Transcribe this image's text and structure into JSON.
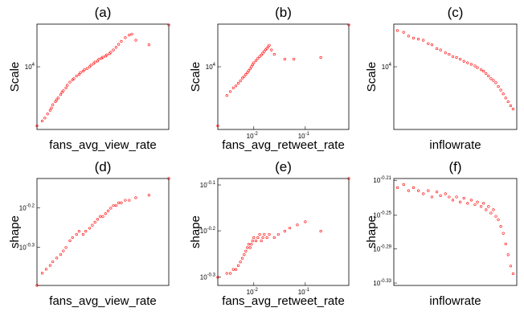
{
  "chart_data": [
    {
      "type": "scatter",
      "title": "(a)",
      "xlabel": "fans_avg_view_rate",
      "ylabel": "Scale",
      "xscale": "linear",
      "yscale": "log",
      "xlim": [
        0,
        1
      ],
      "ylim": [
        2200,
        28000
      ],
      "color": "#ff0000",
      "marker": "circle",
      "xticks": [],
      "yticks": [
        {
          "value": 10000,
          "label_base": "10",
          "label_exp": "4"
        }
      ],
      "x": [
        0.0,
        0.04,
        0.06,
        0.08,
        0.1,
        0.11,
        0.12,
        0.14,
        0.15,
        0.16,
        0.18,
        0.19,
        0.2,
        0.22,
        0.23,
        0.25,
        0.27,
        0.28,
        0.3,
        0.32,
        0.33,
        0.35,
        0.36,
        0.38,
        0.4,
        0.41,
        0.43,
        0.44,
        0.46,
        0.47,
        0.49,
        0.5,
        0.52,
        0.53,
        0.55,
        0.56,
        0.58,
        0.6,
        0.62,
        0.64,
        0.67,
        0.7,
        0.72,
        0.75,
        0.85,
        1.0
      ],
      "y": [
        2400,
        2700,
        2900,
        3200,
        3500,
        3700,
        4000,
        4300,
        4500,
        4700,
        5100,
        5400,
        5600,
        6000,
        6400,
        6900,
        7300,
        7500,
        8000,
        8300,
        8700,
        9000,
        9300,
        9600,
        10000,
        10400,
        10800,
        11200,
        11500,
        12000,
        12300,
        12600,
        12900,
        13300,
        13700,
        14200,
        15000,
        16000,
        17200,
        18500,
        20200,
        21500,
        22000,
        19000,
        17000,
        27500
      ]
    },
    {
      "type": "scatter",
      "title": "(b)",
      "xlabel": "fans_avg_retweet_rate",
      "ylabel": "Scale",
      "xscale": "log",
      "yscale": "log",
      "xlim": [
        0.002,
        0.7
      ],
      "ylim": [
        2200,
        28000
      ],
      "color": "#ff0000",
      "marker": "circle",
      "xticks": [
        {
          "value": 0.01,
          "label_base": "10",
          "label_exp": "-2"
        },
        {
          "value": 0.1,
          "label_base": "10",
          "label_exp": "-1"
        }
      ],
      "yticks": [
        {
          "value": 10000,
          "label_base": "10",
          "label_exp": "4"
        }
      ],
      "x": [
        0.002,
        0.003,
        0.0035,
        0.004,
        0.0045,
        0.005,
        0.0055,
        0.006,
        0.0065,
        0.007,
        0.0075,
        0.008,
        0.0085,
        0.009,
        0.0095,
        0.01,
        0.011,
        0.012,
        0.013,
        0.014,
        0.015,
        0.016,
        0.017,
        0.018,
        0.019,
        0.02,
        0.022,
        0.025,
        0.04,
        0.06,
        0.2,
        0.7
      ],
      "y": [
        2400,
        5000,
        5500,
        6000,
        6300,
        6700,
        7100,
        7600,
        7900,
        8300,
        8700,
        9100,
        9500,
        10000,
        10500,
        11000,
        11600,
        12200,
        12800,
        13300,
        13900,
        14500,
        15100,
        15600,
        16200,
        16800,
        15000,
        13500,
        12000,
        12000,
        12500,
        27500
      ]
    },
    {
      "type": "scatter",
      "title": "(c)",
      "xlabel": "inflowrate",
      "ylabel": "Scale",
      "xscale": "linear",
      "yscale": "log",
      "xlim": [
        0,
        1
      ],
      "ylim": [
        2200,
        28000
      ],
      "color": "#ff0000",
      "marker": "circle",
      "xticks": [],
      "yticks": [
        {
          "value": 10000,
          "label_base": "10",
          "label_exp": "4"
        }
      ],
      "x": [
        0.03,
        0.08,
        0.12,
        0.16,
        0.2,
        0.24,
        0.28,
        0.31,
        0.35,
        0.38,
        0.42,
        0.45,
        0.48,
        0.51,
        0.54,
        0.57,
        0.6,
        0.63,
        0.66,
        0.68,
        0.71,
        0.73,
        0.75,
        0.77,
        0.79,
        0.81,
        0.83,
        0.85,
        0.87,
        0.89,
        0.91,
        0.93,
        0.95,
        0.97
      ],
      "y": [
        24000,
        23000,
        21000,
        20000,
        19500,
        19000,
        17500,
        17000,
        15500,
        15000,
        14000,
        13500,
        12800,
        12500,
        12000,
        11400,
        11000,
        10600,
        10200,
        9800,
        9300,
        9000,
        8500,
        8000,
        7500,
        7200,
        6800,
        6200,
        5700,
        5200,
        4700,
        4300,
        3900,
        3600
      ]
    },
    {
      "type": "scatter",
      "title": "(d)",
      "xlabel": "fans_avg_view_rate",
      "ylabel": "shape",
      "xscale": "linear",
      "yscale": "log",
      "xlim": [
        0,
        1
      ],
      "ylim": [
        0.4,
        0.75
      ],
      "color": "#ff0000",
      "marker": "circle",
      "xticks": [],
      "yticks": [
        {
          "value": 0.631,
          "label_base": "10",
          "label_exp": "-0.2"
        },
        {
          "value": 0.501,
          "label_base": "10",
          "label_exp": "-0.3"
        }
      ],
      "x": [
        0.0,
        0.04,
        0.07,
        0.1,
        0.12,
        0.15,
        0.18,
        0.2,
        0.22,
        0.25,
        0.27,
        0.3,
        0.32,
        0.35,
        0.37,
        0.4,
        0.42,
        0.44,
        0.46,
        0.48,
        0.5,
        0.52,
        0.54,
        0.56,
        0.58,
        0.6,
        0.62,
        0.64,
        0.67,
        0.7,
        0.75,
        0.85,
        1.0
      ],
      "y": [
        0.4,
        0.43,
        0.44,
        0.45,
        0.46,
        0.47,
        0.48,
        0.49,
        0.5,
        0.52,
        0.53,
        0.54,
        0.55,
        0.54,
        0.55,
        0.56,
        0.57,
        0.58,
        0.59,
        0.6,
        0.6,
        0.61,
        0.62,
        0.63,
        0.64,
        0.64,
        0.65,
        0.65,
        0.66,
        0.66,
        0.67,
        0.68,
        0.75
      ]
    },
    {
      "type": "scatter",
      "title": "(e)",
      "xlabel": "fans_avg_retweet_rate",
      "ylabel": "shape",
      "xscale": "log",
      "yscale": "log",
      "xlim": [
        0.002,
        0.7
      ],
      "ylim": [
        0.48,
        0.82
      ],
      "color": "#ff0000",
      "marker": "circle",
      "xticks": [
        {
          "value": 0.01,
          "label_base": "10",
          "label_exp": "-2"
        },
        {
          "value": 0.1,
          "label_base": "10",
          "label_exp": "-1"
        }
      ],
      "yticks": [
        {
          "value": 0.794,
          "label_base": "10",
          "label_exp": "-0.1"
        },
        {
          "value": 0.631,
          "label_base": "10",
          "label_exp": "-0.2"
        },
        {
          "value": 0.501,
          "label_base": "10",
          "label_exp": "-0.3"
        }
      ],
      "x": [
        0.002,
        0.003,
        0.0035,
        0.004,
        0.0045,
        0.005,
        0.0055,
        0.006,
        0.0065,
        0.007,
        0.0075,
        0.008,
        0.0085,
        0.009,
        0.0095,
        0.01,
        0.011,
        0.012,
        0.013,
        0.014,
        0.015,
        0.016,
        0.018,
        0.02,
        0.025,
        0.03,
        0.04,
        0.05,
        0.07,
        0.1,
        0.2,
        0.7
      ],
      "y": [
        0.5,
        0.51,
        0.51,
        0.52,
        0.52,
        0.53,
        0.54,
        0.55,
        0.56,
        0.57,
        0.58,
        0.59,
        0.58,
        0.59,
        0.6,
        0.61,
        0.6,
        0.61,
        0.62,
        0.6,
        0.61,
        0.62,
        0.61,
        0.62,
        0.61,
        0.62,
        0.63,
        0.64,
        0.65,
        0.66,
        0.63,
        0.82
      ]
    },
    {
      "type": "scatter",
      "title": "(f)",
      "xlabel": "inflowrate",
      "ylabel": "shape",
      "xscale": "linear",
      "yscale": "log",
      "xlim": [
        0,
        1
      ],
      "ylim": [
        0.465,
        0.62
      ],
      "color": "#ff0000",
      "marker": "circle",
      "xticks": [],
      "yticks": [
        {
          "value": 0.617,
          "label_base": "10",
          "label_exp": "-0.21"
        },
        {
          "value": 0.562,
          "label_base": "10",
          "label_exp": "-0.25"
        },
        {
          "value": 0.513,
          "label_base": "10",
          "label_exp": "-0.29"
        },
        {
          "value": 0.468,
          "label_base": "10",
          "label_exp": "-0.33"
        }
      ],
      "x": [
        0.03,
        0.08,
        0.12,
        0.16,
        0.2,
        0.24,
        0.28,
        0.31,
        0.35,
        0.38,
        0.42,
        0.45,
        0.48,
        0.51,
        0.54,
        0.57,
        0.6,
        0.63,
        0.66,
        0.68,
        0.71,
        0.73,
        0.75,
        0.77,
        0.79,
        0.81,
        0.83,
        0.85,
        0.87,
        0.89,
        0.91,
        0.93,
        0.95,
        0.97
      ],
      "y": [
        0.605,
        0.61,
        0.6,
        0.605,
        0.6,
        0.595,
        0.6,
        0.59,
        0.598,
        0.592,
        0.595,
        0.59,
        0.585,
        0.59,
        0.582,
        0.588,
        0.58,
        0.585,
        0.578,
        0.582,
        0.575,
        0.58,
        0.57,
        0.575,
        0.565,
        0.57,
        0.56,
        0.555,
        0.545,
        0.535,
        0.52,
        0.505,
        0.49,
        0.48
      ]
    }
  ]
}
